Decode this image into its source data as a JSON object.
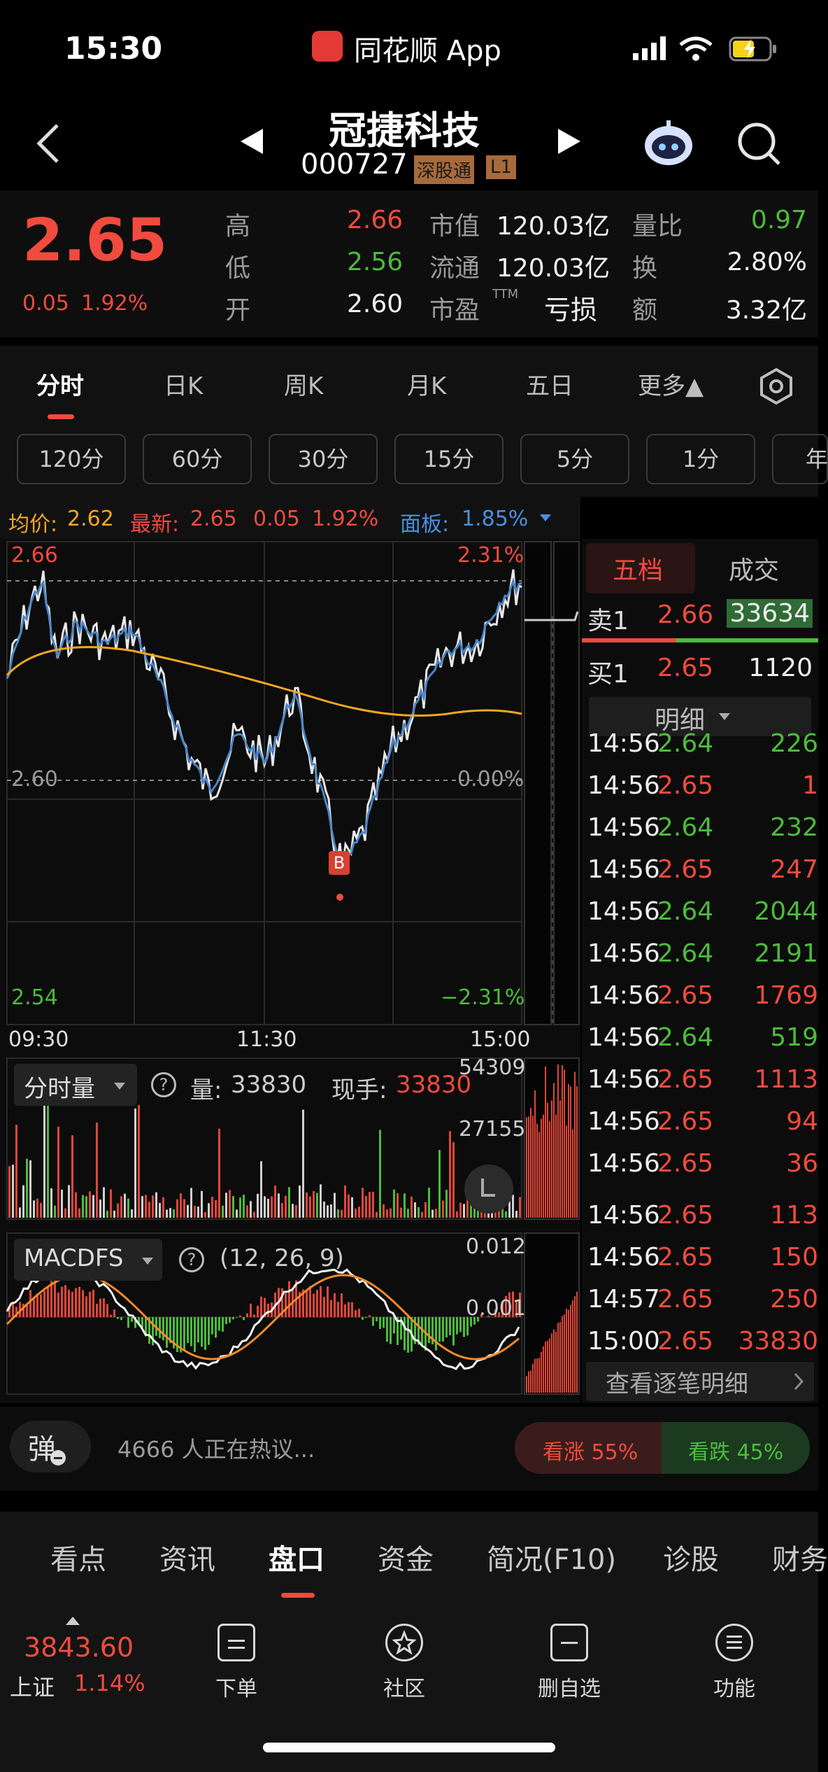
{
  "status": {
    "time": "15:30",
    "app": "同花顺 App"
  },
  "header": {
    "title": "冠捷科技",
    "code": "000727",
    "badge1": "深股通",
    "badge2": "L1"
  },
  "quote": {
    "price": "2.65",
    "change": "0.05",
    "pct": "1.92%",
    "labels": {
      "high": "高",
      "low": "低",
      "open": "开",
      "mcap": "市值",
      "float": "流通",
      "pe": "市盈",
      "pe_sup": "TTM",
      "vr": "量比",
      "turn": "换",
      "amt": "额"
    },
    "values": {
      "high": "2.66",
      "low": "2.56",
      "open": "2.60",
      "mcap": "120.03亿",
      "float": "120.03亿",
      "pe": "亏损",
      "vr": "0.97",
      "turn": "2.80%",
      "amt": "3.32亿"
    }
  },
  "tabs": [
    "分时",
    "日K",
    "周K",
    "月K",
    "五日",
    "更多▲"
  ],
  "periods": [
    "120分",
    "60分",
    "30分",
    "15分",
    "5分",
    "1分",
    "年"
  ],
  "info": {
    "avg_label": "均价:",
    "avg": "2.62",
    "latest_label": "最新:",
    "latest": "2.65",
    "chg": "0.05",
    "pct": "1.92%",
    "panel_label": "面板:",
    "panel": "1.85%"
  },
  "chart": {
    "ymax": "2.66",
    "ymid": "2.60",
    "ymin": "2.54",
    "pmax": "2.31%",
    "pmid": "0.00%",
    "pmin": "−2.31%",
    "t0": "09:30",
    "t1": "11:30",
    "t2": "15:00",
    "marker": "B"
  },
  "volume": {
    "title": "分时量",
    "vol_label": "量:",
    "vol": "33830",
    "cur_label": "现手:",
    "cur": "33830",
    "max": "54309",
    "mid": "27155"
  },
  "macd": {
    "title": "MACDFS",
    "params": "(12, 26, 9)",
    "top": "0.012",
    "mid": "0.001"
  },
  "side": {
    "tab1": "五档",
    "tab2": "成交",
    "sell_label": "卖1",
    "sell_price": "2.66",
    "sell_vol": "33634",
    "buy_label": "买1",
    "buy_price": "2.65",
    "buy_vol": "1120",
    "detail": "明细",
    "more": "查看逐笔明细",
    "trades": [
      {
        "t": "14:56",
        "p": "2.64",
        "v": "226",
        "c": "green"
      },
      {
        "t": "14:56",
        "p": "2.65",
        "v": "1",
        "c": "red"
      },
      {
        "t": "14:56",
        "p": "2.64",
        "v": "232",
        "c": "green"
      },
      {
        "t": "14:56",
        "p": "2.65",
        "v": "247",
        "c": "red"
      },
      {
        "t": "14:56",
        "p": "2.64",
        "v": "2044",
        "c": "green"
      },
      {
        "t": "14:56",
        "p": "2.64",
        "v": "2191",
        "c": "green"
      },
      {
        "t": "14:56",
        "p": "2.65",
        "v": "1769",
        "c": "red"
      },
      {
        "t": "14:56",
        "p": "2.64",
        "v": "519",
        "c": "green"
      },
      {
        "t": "14:56",
        "p": "2.65",
        "v": "1113",
        "c": "red"
      },
      {
        "t": "14:56",
        "p": "2.65",
        "v": "94",
        "c": "red"
      },
      {
        "t": "14:56",
        "p": "2.65",
        "v": "36",
        "c": "red"
      },
      {
        "t": "14:56",
        "p": "2.65",
        "v": "113",
        "c": "red"
      },
      {
        "t": "14:56",
        "p": "2.65",
        "v": "150",
        "c": "red"
      },
      {
        "t": "14:57",
        "p": "2.65",
        "v": "250",
        "c": "red"
      },
      {
        "t": "15:00",
        "p": "2.65",
        "v": "33830",
        "c": "red"
      }
    ]
  },
  "discuss": {
    "badge": "弹",
    "text": "4666 人正在热议...",
    "up": "看涨 55%",
    "down": "看跌 45%"
  },
  "bottom_tabs": [
    "看点",
    "资讯",
    "盘口",
    "资金",
    "简况(F10)",
    "诊股",
    "财务"
  ],
  "toolbar": {
    "index_value": "3843.60",
    "index_name": "上证",
    "index_pct": "1.14%",
    "items": [
      "下单",
      "社区",
      "删自选",
      "功能"
    ]
  }
}
